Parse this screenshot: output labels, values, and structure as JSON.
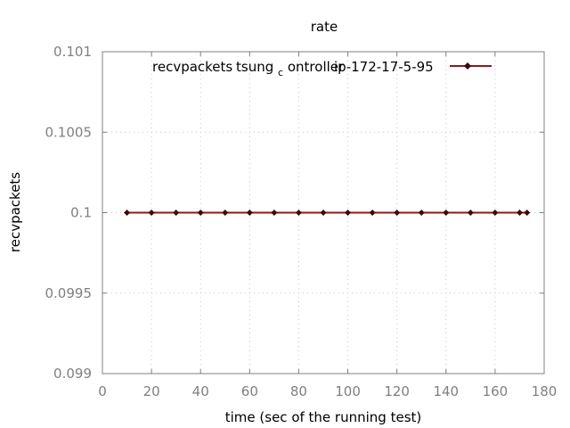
{
  "chart_data": {
    "type": "line",
    "title": "rate",
    "xlabel": "time (sec of the running test)",
    "ylabel": "recvpackets",
    "xlim": [
      0,
      180
    ],
    "ylim": [
      0.099,
      0.101
    ],
    "xticks": [
      "0",
      "20",
      "40",
      "60",
      "80",
      "100",
      "120",
      "140",
      "160",
      "180"
    ],
    "yticks": [
      "0.099",
      "0.0995",
      "0.1",
      "0.1005",
      "0.101"
    ],
    "grid": true,
    "legend_position": "top-right",
    "series": [
      {
        "name": "recvpackets tsung_controller ip-172-17-5-95",
        "legend_label": {
          "part1": "recvpackets",
          "part2": "tsung",
          "part3": "c",
          "part4": "ontroller",
          "part5": "ip-172-17-5-95"
        },
        "color": "#8b1a1a",
        "x": [
          10,
          20,
          30,
          40,
          50,
          60,
          70,
          80,
          90,
          100,
          110,
          120,
          130,
          140,
          150,
          160,
          170,
          173
        ],
        "values": [
          0.1,
          0.1,
          0.1,
          0.1,
          0.1,
          0.1,
          0.1,
          0.1,
          0.1,
          0.1,
          0.1,
          0.1,
          0.1,
          0.1,
          0.1,
          0.1,
          0.1,
          0.1
        ]
      }
    ]
  }
}
